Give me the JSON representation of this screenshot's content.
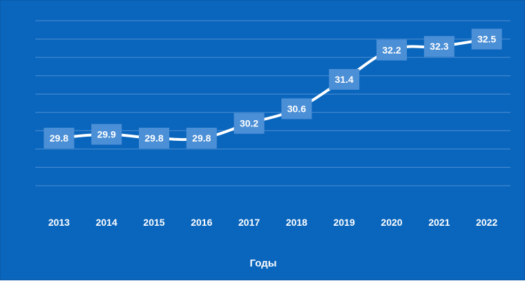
{
  "chart_data": {
    "type": "line",
    "x": [
      "2013",
      "2014",
      "2015",
      "2016",
      "2017",
      "2018",
      "2019",
      "2020",
      "2021",
      "2022"
    ],
    "values": [
      29.8,
      29.9,
      29.8,
      29.8,
      30.2,
      30.6,
      31.4,
      32.2,
      32.3,
      32.5
    ],
    "data_labels": [
      "29.8",
      "29.9",
      "29.8",
      "29.8",
      "30.2",
      "30.6",
      "31.4",
      "32.2",
      "32.3",
      "32.5"
    ],
    "xlabel": "Годы",
    "ylabel": "",
    "ylim": [
      28.5,
      33.0
    ],
    "grid": "horizontal",
    "legend": "none",
    "colors": {
      "background": "#0a66bd",
      "line": "#ffffff",
      "grid": "#4f8fd3",
      "label_box": "#4b8fd6",
      "text": "#ffffff"
    }
  }
}
